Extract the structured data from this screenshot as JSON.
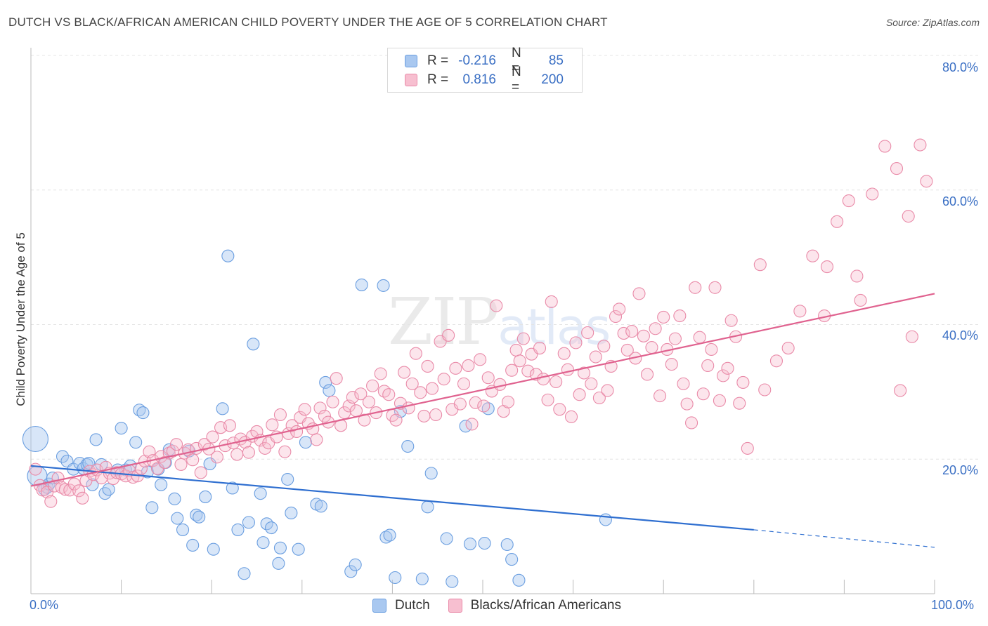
{
  "title": "DUTCH VS BLACK/AFRICAN AMERICAN CHILD POVERTY UNDER THE AGE OF 5 CORRELATION CHART",
  "source": "Source: ZipAtlas.com",
  "watermark": {
    "zip": "ZIP",
    "atlas": "atlas"
  },
  "legend": {
    "rows": [
      {
        "r_label": "R =",
        "r_value": "-0.216",
        "n_label": "N =",
        "n_value": "85",
        "color": "#a9c8f0",
        "border": "#6a9ee0"
      },
      {
        "r_label": "R =",
        "r_value": "0.816",
        "n_label": "N =",
        "n_value": "200",
        "color": "#f7bfd0",
        "border": "#e98aa8"
      }
    ]
  },
  "bottom_legend": [
    {
      "label": "Dutch",
      "color": "#a9c8f0",
      "border": "#6a9ee0"
    },
    {
      "label": "Blacks/African Americans",
      "color": "#f7bfd0",
      "border": "#e98aa8"
    }
  ],
  "chart_data": {
    "type": "scatter",
    "title": "DUTCH VS BLACK/AFRICAN AMERICAN CHILD POVERTY UNDER THE AGE OF 5 CORRELATION CHART",
    "xlabel": "",
    "ylabel": "Child Poverty Under the Age of 5",
    "xlim": [
      0,
      100
    ],
    "ylim": [
      0,
      80
    ],
    "x_tick_labels": [
      "0.0%",
      "100.0%"
    ],
    "y_ticks": [
      20,
      40,
      60,
      80
    ],
    "y_tick_labels": [
      "20.0%",
      "40.0%",
      "60.0%",
      "80.0%"
    ],
    "grid": true,
    "series": [
      {
        "name": "Dutch",
        "color": "#6a9ee0",
        "trend": {
          "x0": 0,
          "y0": 19.0,
          "x1": 80,
          "y1": 9.5,
          "dash_to_x": 100,
          "dash_to_y": 6.9
        },
        "points": [
          [
            0.5,
            23
          ],
          [
            0.7,
            17.5
          ],
          [
            1.5,
            15.5
          ],
          [
            1.8,
            15.8
          ],
          [
            2,
            16.3
          ],
          [
            2.4,
            17.2
          ],
          [
            3.5,
            20.4
          ],
          [
            4,
            19.7
          ],
          [
            4.7,
            18.5
          ],
          [
            5.4,
            19.4
          ],
          [
            5.8,
            18.6
          ],
          [
            6.2,
            19.2
          ],
          [
            6.4,
            19.4
          ],
          [
            6.8,
            16.2
          ],
          [
            7.2,
            22.9
          ],
          [
            7.8,
            19.2
          ],
          [
            8.2,
            14.9
          ],
          [
            8.6,
            15.5
          ],
          [
            9.6,
            18.4
          ],
          [
            10,
            24.6
          ],
          [
            10.5,
            18.4
          ],
          [
            11,
            19
          ],
          [
            11.6,
            22.5
          ],
          [
            12,
            27.3
          ],
          [
            12.4,
            26.9
          ],
          [
            12.9,
            18.1
          ],
          [
            13.4,
            12.8
          ],
          [
            14.1,
            18.5
          ],
          [
            14.4,
            16.2
          ],
          [
            14.9,
            19.5
          ],
          [
            15.3,
            21.4
          ],
          [
            15.9,
            14.1
          ],
          [
            16.2,
            11.2
          ],
          [
            16.8,
            9.5
          ],
          [
            17.5,
            21.2
          ],
          [
            17.9,
            7.2
          ],
          [
            18.3,
            11.7
          ],
          [
            18.6,
            11.4
          ],
          [
            19.3,
            14.4
          ],
          [
            19.8,
            19.3
          ],
          [
            20.2,
            6.6
          ],
          [
            21.2,
            27.5
          ],
          [
            21.8,
            50.2
          ],
          [
            22.3,
            15.7
          ],
          [
            22.9,
            9.5
          ],
          [
            23.6,
            3.0
          ],
          [
            24.1,
            10.6
          ],
          [
            24.6,
            37.1
          ],
          [
            25.4,
            14.9
          ],
          [
            25.7,
            7.6
          ],
          [
            26.1,
            10.4
          ],
          [
            26.6,
            9.8
          ],
          [
            27.4,
            4.5
          ],
          [
            27.6,
            6.8
          ],
          [
            28.4,
            17.0
          ],
          [
            28.8,
            12
          ],
          [
            29.6,
            6.6
          ],
          [
            30.4,
            22.5
          ],
          [
            31.6,
            13.3
          ],
          [
            32.1,
            13
          ],
          [
            32.6,
            31.4
          ],
          [
            33,
            30.2
          ],
          [
            35.4,
            3.3
          ],
          [
            35.9,
            4.3
          ],
          [
            36.6,
            45.9
          ],
          [
            39,
            45.8
          ],
          [
            39.3,
            8.4
          ],
          [
            39.7,
            8.7
          ],
          [
            40.3,
            2.4
          ],
          [
            40.9,
            27.1
          ],
          [
            41.7,
            21.9
          ],
          [
            43.3,
            2.2
          ],
          [
            43.9,
            12.9
          ],
          [
            44.3,
            17.9
          ],
          [
            46,
            8.2
          ],
          [
            46.6,
            1.8
          ],
          [
            48.1,
            24.9
          ],
          [
            48.6,
            7.4
          ],
          [
            50.2,
            7.5
          ],
          [
            50.6,
            27.5
          ],
          [
            52.7,
            7.3
          ],
          [
            53.2,
            5.1
          ],
          [
            54,
            2.0
          ],
          [
            63.6,
            11
          ]
        ]
      },
      {
        "name": "Blacks/African Americans",
        "color": "#e98aa8",
        "trend": {
          "x0": 0,
          "y0": 16.0,
          "x1": 100,
          "y1": 44.6
        },
        "points": [
          [
            0.5,
            18.5
          ],
          [
            1,
            16.1
          ],
          [
            1.3,
            15.4
          ],
          [
            1.8,
            15.1
          ],
          [
            2.2,
            13.7
          ],
          [
            2.6,
            16
          ],
          [
            3,
            17.2
          ],
          [
            3.4,
            15.8
          ],
          [
            3.8,
            15.5
          ],
          [
            4.3,
            15.4
          ],
          [
            4.8,
            16.3
          ],
          [
            5.3,
            15.3
          ],
          [
            5.7,
            14.2
          ],
          [
            6.1,
            16.8
          ],
          [
            6.5,
            18.2
          ],
          [
            6.9,
            17.7
          ],
          [
            7.3,
            18.4
          ],
          [
            7.8,
            17.2
          ],
          [
            8.3,
            18.8
          ],
          [
            8.7,
            17.9
          ],
          [
            9.1,
            17.1
          ],
          [
            9.5,
            18
          ],
          [
            10,
            17.8
          ],
          [
            10.5,
            17.5
          ],
          [
            10.9,
            18.3
          ],
          [
            11.3,
            17.3
          ],
          [
            11.8,
            17.5
          ],
          [
            12.2,
            18.6
          ],
          [
            12.6,
            19.7
          ],
          [
            13.1,
            21.1
          ],
          [
            13.5,
            19.8
          ],
          [
            14,
            18.6
          ],
          [
            14.4,
            20.4
          ],
          [
            14.8,
            19.5
          ],
          [
            15.3,
            20.9
          ],
          [
            15.7,
            21.2
          ],
          [
            16.1,
            22.2
          ],
          [
            16.6,
            19.2
          ],
          [
            17,
            20.9
          ],
          [
            17.4,
            21.4
          ],
          [
            17.9,
            19.9
          ],
          [
            18.3,
            21.6
          ],
          [
            18.8,
            18
          ],
          [
            19.2,
            22.2
          ],
          [
            19.7,
            21.5
          ],
          [
            20.1,
            23.3
          ],
          [
            20.6,
            20.3
          ],
          [
            21,
            24.7
          ],
          [
            21.5,
            22
          ],
          [
            22,
            25
          ],
          [
            22.4,
            22.4
          ],
          [
            22.8,
            20.7
          ],
          [
            23.2,
            23
          ],
          [
            23.7,
            22.5
          ],
          [
            24.1,
            21
          ],
          [
            24.5,
            23.4
          ],
          [
            25,
            24.1
          ],
          [
            25.4,
            22.8
          ],
          [
            25.9,
            21.6
          ],
          [
            26.3,
            22.4
          ],
          [
            26.7,
            25.1
          ],
          [
            27.2,
            23.3
          ],
          [
            27.6,
            26.6
          ],
          [
            28.1,
            21.1
          ],
          [
            28.5,
            23.8
          ],
          [
            28.9,
            25
          ],
          [
            29.4,
            24.1
          ],
          [
            29.8,
            26.2
          ],
          [
            30.3,
            27.4
          ],
          [
            30.7,
            25.3
          ],
          [
            31.2,
            24.5
          ],
          [
            31.6,
            22.9
          ],
          [
            32,
            27.6
          ],
          [
            32.5,
            26.4
          ],
          [
            32.9,
            25.5
          ],
          [
            33.4,
            28.5
          ],
          [
            33.8,
            32
          ],
          [
            34.3,
            25
          ],
          [
            34.7,
            26.9
          ],
          [
            35.2,
            27.9
          ],
          [
            35.6,
            29.2
          ],
          [
            36,
            27.2
          ],
          [
            36.5,
            29.7
          ],
          [
            36.9,
            25.8
          ],
          [
            37.4,
            28.5
          ],
          [
            37.8,
            30.9
          ],
          [
            38.2,
            26.9
          ],
          [
            38.7,
            32.7
          ],
          [
            39.1,
            30.1
          ],
          [
            39.6,
            29.6
          ],
          [
            40,
            26.5
          ],
          [
            40.4,
            25.8
          ],
          [
            40.9,
            28.3
          ],
          [
            41.3,
            32.9
          ],
          [
            41.8,
            27.6
          ],
          [
            42.2,
            31.2
          ],
          [
            42.6,
            35.7
          ],
          [
            43.1,
            29.9
          ],
          [
            43.5,
            26.4
          ],
          [
            43.9,
            33.8
          ],
          [
            44.4,
            30.5
          ],
          [
            44.8,
            26.6
          ],
          [
            45.3,
            37.5
          ],
          [
            45.7,
            31.9
          ],
          [
            46.2,
            38.4
          ],
          [
            46.6,
            27.4
          ],
          [
            47,
            33.5
          ],
          [
            47.5,
            28.2
          ],
          [
            47.9,
            31.2
          ],
          [
            48.4,
            33.9
          ],
          [
            48.8,
            25.2
          ],
          [
            49.2,
            28.4
          ],
          [
            49.7,
            34.8
          ],
          [
            50.1,
            27.9
          ],
          [
            50.6,
            32.1
          ],
          [
            51,
            30.1
          ],
          [
            51.5,
            42.8
          ],
          [
            51.9,
            31.1
          ],
          [
            52.3,
            27.1
          ],
          [
            52.8,
            28.5
          ],
          [
            53.2,
            33.2
          ],
          [
            53.7,
            36.2
          ],
          [
            54.1,
            34.6
          ],
          [
            54.5,
            37.9
          ],
          [
            55,
            33.1
          ],
          [
            55.4,
            35.6
          ],
          [
            55.9,
            32.6
          ],
          [
            56.3,
            36.5
          ],
          [
            56.7,
            31.9
          ],
          [
            57.2,
            28.8
          ],
          [
            57.6,
            43.4
          ],
          [
            58.1,
            31.5
          ],
          [
            58.5,
            27.4
          ],
          [
            59,
            35.7
          ],
          [
            59.4,
            33.3
          ],
          [
            59.8,
            26.3
          ],
          [
            60.3,
            37.3
          ],
          [
            60.7,
            29.6
          ],
          [
            61.2,
            32.8
          ],
          [
            61.6,
            38.8
          ],
          [
            62,
            31.2
          ],
          [
            62.5,
            35.2
          ],
          [
            62.9,
            29.1
          ],
          [
            63.4,
            36.8
          ],
          [
            63.8,
            30.2
          ],
          [
            64.2,
            33.8
          ],
          [
            64.7,
            41.2
          ],
          [
            65.1,
            42.3
          ],
          [
            65.6,
            38.7
          ],
          [
            66,
            36.2
          ],
          [
            66.5,
            39
          ],
          [
            66.9,
            35
          ],
          [
            67.3,
            44.6
          ],
          [
            67.8,
            38.3
          ],
          [
            68.2,
            32.6
          ],
          [
            68.7,
            36.6
          ],
          [
            69.1,
            39.4
          ],
          [
            69.6,
            29.4
          ],
          [
            70,
            41.1
          ],
          [
            70.4,
            36.3
          ],
          [
            70.9,
            34.1
          ],
          [
            71.3,
            37.9
          ],
          [
            71.8,
            41.3
          ],
          [
            72.2,
            31.2
          ],
          [
            72.6,
            28.2
          ],
          [
            73.1,
            25.4
          ],
          [
            73.5,
            45.5
          ],
          [
            74,
            38.1
          ],
          [
            74.4,
            29.7
          ],
          [
            74.9,
            33.9
          ],
          [
            75.3,
            36.3
          ],
          [
            75.7,
            45.5
          ],
          [
            76.2,
            28.7
          ],
          [
            76.6,
            32.4
          ],
          [
            77.1,
            33.5
          ],
          [
            77.5,
            40.6
          ],
          [
            78,
            38.2
          ],
          [
            78.4,
            28.3
          ],
          [
            78.8,
            31.4
          ],
          [
            79.3,
            21.6
          ],
          [
            80.7,
            48.9
          ],
          [
            81.2,
            30.3
          ],
          [
            82.5,
            34.6
          ],
          [
            83.8,
            36.5
          ],
          [
            85.1,
            42
          ],
          [
            86.5,
            50.2
          ],
          [
            87.8,
            41.3
          ],
          [
            89.2,
            55.3
          ],
          [
            90.5,
            58.4
          ],
          [
            91.8,
            43.6
          ],
          [
            93.1,
            59.4
          ],
          [
            94.5,
            66.5
          ],
          [
            95.8,
            63.2
          ],
          [
            97.1,
            56.1
          ],
          [
            98.4,
            66.7
          ],
          [
            99.1,
            61.3
          ],
          [
            96.2,
            30.2
          ],
          [
            97.5,
            38.2
          ],
          [
            91.4,
            47.2
          ],
          [
            88.1,
            48.6
          ]
        ]
      }
    ]
  }
}
